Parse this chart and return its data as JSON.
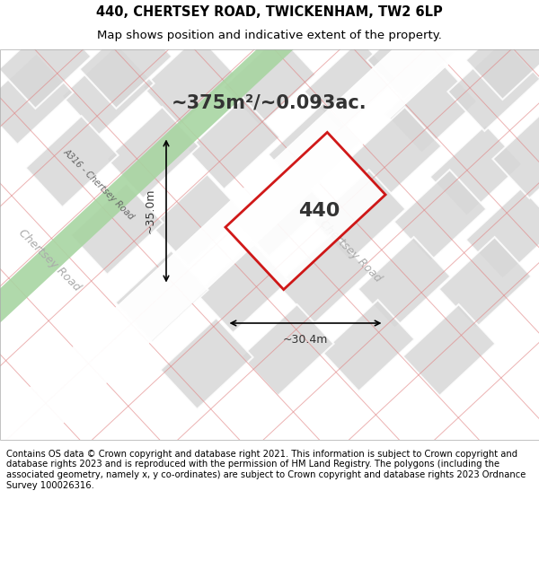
{
  "title": "440, CHERTSEY ROAD, TWICKENHAM, TW2 6LP",
  "subtitle": "Map shows position and indicative extent of the property.",
  "area_text": "~375m²/~0.093ac.",
  "label_440": "440",
  "dim_width": "~30.4m",
  "dim_height": "~35.0m",
  "road_label_chertsey": "Chertsey Road",
  "road_label_a316": "A316 - Chertsey Road",
  "bg_color": "#f5f5f5",
  "map_bg": "#f0eeee",
  "block_color": "#d8d8d8",
  "road_color": "#ffffff",
  "green_strip_color": "#a8d5a2",
  "red_outline_color": "#cc0000",
  "red_line_color": "#e88080",
  "footnote": "Contains OS data © Crown copyright and database right 2021. This information is subject to Crown copyright and database rights 2023 and is reproduced with the permission of HM Land Registry. The polygons (including the associated geometry, namely x, y co-ordinates) are subject to Crown copyright and database rights 2023 Ordnance Survey 100026316."
}
